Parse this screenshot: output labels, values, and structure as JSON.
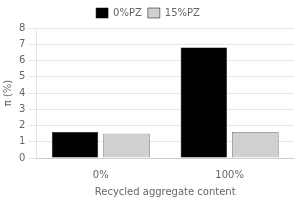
{
  "chart_data": {
    "type": "bar",
    "categories": [
      "0%",
      "100%"
    ],
    "series": [
      {
        "name": "0%PZ",
        "color": "#000000",
        "values": [
          1.6,
          6.8
        ]
      },
      {
        "name": "15%PZ",
        "color": "#d0d0d0",
        "values": [
          1.5,
          1.6
        ]
      }
    ],
    "xlabel": "Recycled aggregate content",
    "ylabel": "π (%)",
    "ylim": [
      0,
      8
    ],
    "yticks": [
      0,
      1,
      2,
      3,
      4,
      5,
      6,
      7,
      8
    ],
    "grid": true,
    "legend": "top"
  }
}
